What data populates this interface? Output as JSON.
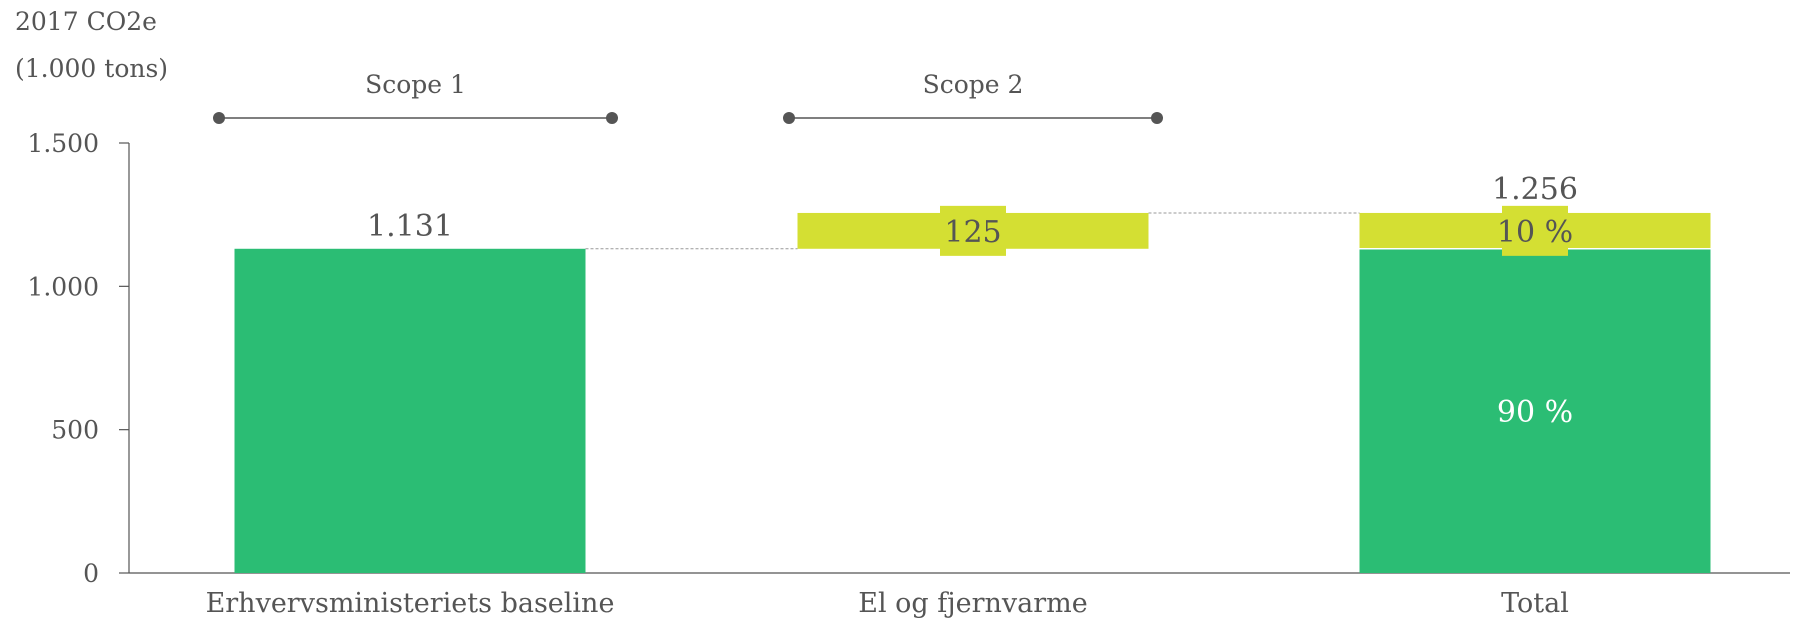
{
  "chart_data": {
    "type": "bar",
    "subtype": "waterfall",
    "ylabel_lines": [
      "2017 CO2e",
      "(1.000 tons)"
    ],
    "ylim": [
      0,
      1500
    ],
    "yticks": [
      0,
      500,
      1000,
      1500
    ],
    "ytick_labels": [
      "0",
      "500",
      "1.000",
      "1.500"
    ],
    "grid": false,
    "categories": [
      "Erhvervsministeriets baseline",
      "El og fjernvarme",
      "Total"
    ],
    "bars": [
      {
        "category": "Erhvervsministeriets baseline",
        "base": 0,
        "value": 1131,
        "label": "1.131",
        "color": "#2bbd74"
      },
      {
        "category": "El og fjernvarme",
        "base": 1131,
        "value": 125,
        "label": "125",
        "color": "#d4df33"
      },
      {
        "category": "Total",
        "base": 0,
        "value": 1131,
        "label": "90 %",
        "color": "#2bbd74"
      },
      {
        "category": "Total",
        "base": 1131,
        "value": 125,
        "label": "10 %",
        "color": "#d4df33"
      }
    ],
    "total_label": "1.256",
    "scope_brackets": [
      {
        "label": "Scope 1",
        "category_index": 0
      },
      {
        "label": "Scope 2",
        "category_index": 1
      }
    ]
  },
  "colors": {
    "scope1": "#2bbd74",
    "scope2": "#d4df33",
    "axis": "#555555",
    "connector": "#999999"
  }
}
